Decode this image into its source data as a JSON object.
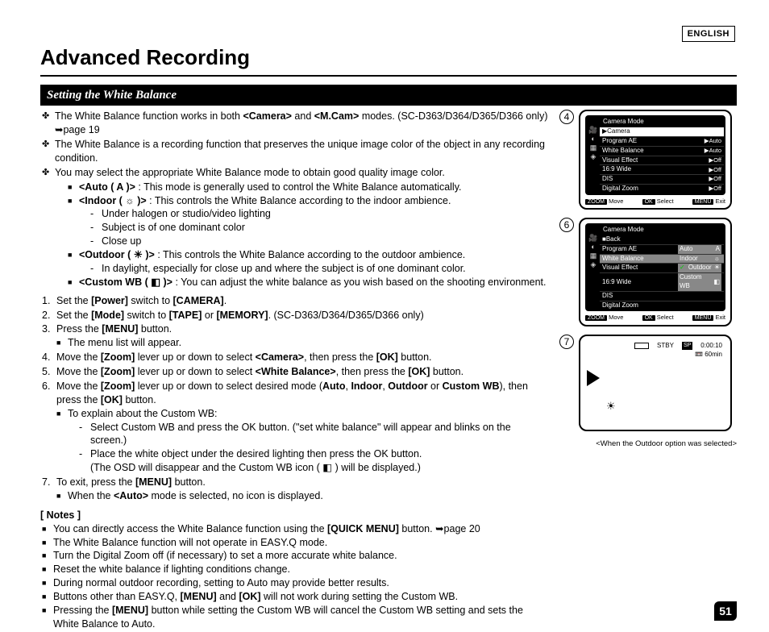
{
  "language_tag": "ENGLISH",
  "page_title": "Advanced Recording",
  "section_title": "Setting the White Balance",
  "page_number": "51",
  "top_bullets": [
    "The White Balance function works in both <Camera> and <M.Cam> modes. (SC-D363/D364/D365/D366 only) ➥page 19",
    "The White Balance is a recording function that preserves the unique image color of the object in any recording condition.",
    "You may select the appropriate White Balance mode to obtain good quality image color."
  ],
  "modes": {
    "auto": {
      "label": "<Auto ( A )>",
      "desc": " : This mode is generally used to control the White Balance automatically."
    },
    "indoor": {
      "label": "<Indoor ( ☼ )>",
      "desc": " : This controls the White Balance according to the indoor ambience.",
      "subs": [
        "Under halogen or studio/video lighting",
        "Subject is of one dominant color",
        "Close up"
      ]
    },
    "outdoor": {
      "label": "<Outdoor ( ☀ )>",
      "desc": " : This controls the White Balance according to the outdoor ambience.",
      "subs": [
        "In daylight, especially for close up and where the subject is of one dominant color."
      ]
    },
    "custom": {
      "label": "<Custom WB ( ◧ )>",
      "desc": " : You can adjust the white balance as you wish based on the shooting environment."
    }
  },
  "steps_lead": "",
  "steps": [
    {
      "n": "1.",
      "html": "Set the <b>[Power]</b> switch to <b>[CAMERA]</b>."
    },
    {
      "n": "2.",
      "html": "Set the <b>[Mode]</b> switch to <b>[TAPE]</b> or <b>[MEMORY]</b>. (SC-D363/D364/D365/D366 only)"
    },
    {
      "n": "3.",
      "html": "Press the <b>[MENU]</b> button."
    },
    {
      "n": "",
      "sub_sq": "The menu list will appear."
    },
    {
      "n": "4.",
      "html": "Move the <b>[Zoom]</b> lever up or down to select <b>&lt;Camera&gt;</b>, then press the <b>[OK]</b> button."
    },
    {
      "n": "5.",
      "html": "Move the <b>[Zoom]</b> lever up or down to select <b>&lt;White Balance&gt;</b>, then press the <b>[OK]</b> button."
    },
    {
      "n": "6.",
      "html": "Move the <b>[Zoom]</b> lever up or down to select desired mode (<b>Auto</b>, <b>Indoor</b>, <b>Outdoor</b> or <b>Custom WB</b>), then press the <b>[OK]</b> button."
    },
    {
      "n": "",
      "sub_sq": "To explain about the Custom WB:"
    },
    {
      "n": "",
      "sub_dash": "Select Custom WB and press the OK button. (\"set white balance\" will appear and blinks on the screen.)"
    },
    {
      "n": "",
      "sub_dash": "Place the white object under the desired lighting then press the OK button.\n(The OSD will disappear and the Custom WB icon ( ◧ ) will be displayed.)"
    },
    {
      "n": "7.",
      "html": "To exit, press the <b>[MENU]</b> button."
    },
    {
      "n": "",
      "sub_sq": "When the <b>&lt;Auto&gt;</b> mode is selected, no icon is displayed."
    }
  ],
  "notes_header": "[ Notes ]",
  "notes": [
    "You can directly access the White Balance function using the <b>[QUICK MENU]</b> button. ➥page 20",
    "The White Balance function will not operate in EASY.Q mode.",
    "Turn the Digital Zoom off (if necessary) to set a more accurate white balance.",
    "Reset the white balance if lighting conditions change.",
    "During normal outdoor recording, setting to Auto may provide better results.",
    "Buttons other than EASY.Q, <b>[MENU]</b> and <b>[OK]</b> will not work during setting the Custom WB.",
    "Pressing the <b>[MENU]</b> button while setting the Custom WB will cancel the Custom WB setting and sets the White Balance to Auto."
  ],
  "panel4": {
    "step": "4",
    "title": "Camera Mode",
    "selected": "▶Camera",
    "items": [
      {
        "name": "Program AE",
        "val": "▶Auto"
      },
      {
        "name": "White Balance",
        "val": "▶Auto"
      },
      {
        "name": "Visual Effect",
        "val": "▶Off"
      },
      {
        "name": "16:9 Wide",
        "val": "▶Off"
      },
      {
        "name": "DIS",
        "val": "▶Off"
      },
      {
        "name": "Digital Zoom",
        "val": "▶Off"
      }
    ],
    "footer": {
      "zoom": "ZOOM",
      "move": "Move",
      "ok": "OK",
      "select": "Select",
      "menu": "MENU",
      "exit": "Exit"
    }
  },
  "panel6": {
    "step": "6",
    "title": "Camera Mode",
    "back": "■Back",
    "items": [
      {
        "name": "Program AE"
      },
      {
        "name": "White Balance",
        "hl": true,
        "options": [
          "Auto",
          "Indoor",
          "✓Outdoor",
          "Custom WB"
        ],
        "icons": [
          "A",
          "☼",
          "☀",
          "◧"
        ]
      },
      {
        "name": "Visual Effect"
      },
      {
        "name": "16:9 Wide"
      },
      {
        "name": "DIS"
      },
      {
        "name": "Digital Zoom"
      }
    ],
    "footer": {
      "zoom": "ZOOM",
      "move": "Move",
      "ok": "OK",
      "select": "Select",
      "menu": "MENU",
      "exit": "Exit"
    }
  },
  "panel7": {
    "step": "7",
    "stby": "STBY",
    "sp": "SP",
    "time": "0:00:10",
    "remain": "60min",
    "caption": "<When the Outdoor option was selected>"
  }
}
